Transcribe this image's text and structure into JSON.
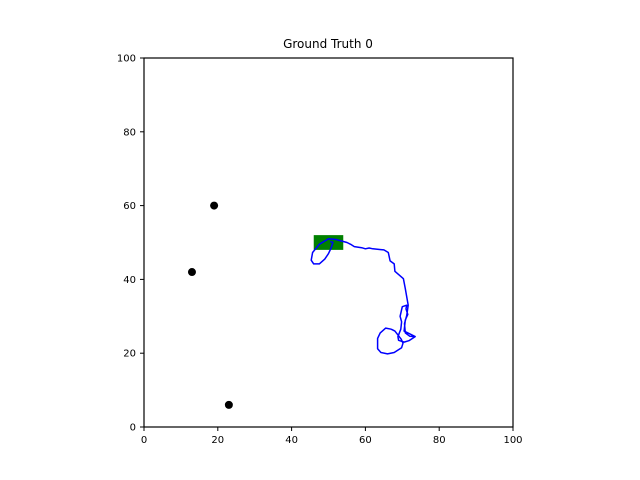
{
  "chart_data": {
    "type": "scatter",
    "title": "Ground Truth 0",
    "xlabel": "",
    "ylabel": "",
    "xlim": [
      0,
      100
    ],
    "ylim": [
      0,
      100
    ],
    "xticks": [
      0,
      20,
      40,
      60,
      80,
      100
    ],
    "yticks": [
      0,
      20,
      40,
      60,
      80,
      100
    ],
    "grid": false,
    "points": [
      {
        "x": 19,
        "y": 60
      },
      {
        "x": 13,
        "y": 42
      },
      {
        "x": 23,
        "y": 6
      }
    ],
    "rectangle": {
      "x0": 46,
      "y0": 48,
      "x1": 54,
      "y1": 52
    },
    "path": [
      [
        73.5,
        24.5
      ],
      [
        70.5,
        26
      ],
      [
        70.8,
        29
      ],
      [
        71.5,
        30.5
      ],
      [
        71,
        32
      ],
      [
        71.2,
        33
      ],
      [
        70,
        32.6
      ],
      [
        69.4,
        30
      ],
      [
        69.8,
        28.5
      ],
      [
        69.6,
        26.5
      ],
      [
        68.8,
        24.5
      ],
      [
        69,
        23.5
      ],
      [
        70.5,
        23
      ],
      [
        71.8,
        23.4
      ],
      [
        73.5,
        24.5
      ],
      [
        72,
        24.6
      ],
      [
        70.8,
        25.5
      ],
      [
        70.6,
        28
      ],
      [
        71.2,
        30.2
      ],
      [
        71.6,
        33
      ],
      [
        70.8,
        37.5
      ],
      [
        70.3,
        40.2
      ],
      [
        68,
        42.2
      ],
      [
        67.8,
        44.2
      ],
      [
        66.7,
        45
      ],
      [
        66.2,
        47.3
      ],
      [
        65,
        48
      ],
      [
        62,
        48.3
      ],
      [
        61,
        48.5
      ],
      [
        60,
        48.3
      ],
      [
        59,
        48.6
      ],
      [
        57,
        48.9
      ],
      [
        56,
        49.5
      ],
      [
        55,
        50
      ],
      [
        52,
        50.8
      ],
      [
        50,
        51
      ],
      [
        49,
        50.4
      ],
      [
        47.5,
        49.5
      ],
      [
        45.7,
        47.3
      ],
      [
        45.3,
        45.2
      ],
      [
        46,
        44.2
      ],
      [
        47.5,
        44.2
      ],
      [
        49,
        45.5
      ],
      [
        50,
        47
      ],
      [
        50.7,
        48.5
      ],
      [
        51.2,
        50
      ],
      [
        50.5,
        50.3
      ]
    ],
    "loop": [
      [
        67,
        26.5
      ],
      [
        65.5,
        26.8
      ],
      [
        64,
        25.5
      ],
      [
        63.3,
        24
      ],
      [
        63.3,
        21.2
      ],
      [
        64.2,
        20.2
      ],
      [
        66,
        19.8
      ],
      [
        67.8,
        20.2
      ],
      [
        69.8,
        21.5
      ],
      [
        70.2,
        22.7
      ],
      [
        69.7,
        23.8
      ],
      [
        68,
        26
      ],
      [
        67,
        26.5
      ]
    ],
    "colors": {
      "point": "#000000",
      "rectangle": "#008000",
      "path": "#0000ff",
      "axes": "#000000"
    }
  }
}
